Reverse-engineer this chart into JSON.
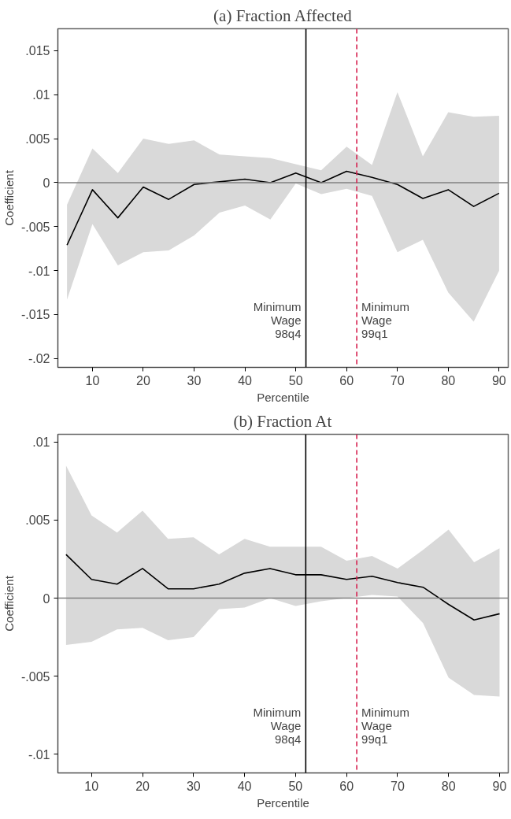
{
  "chart_data": [
    {
      "type": "line",
      "title": "(a) Fraction Affected",
      "xlabel": "Percentile",
      "ylabel": "Coefficient",
      "x": [
        5,
        10,
        15,
        20,
        25,
        30,
        35,
        40,
        45,
        50,
        55,
        60,
        65,
        70,
        75,
        80,
        85,
        90
      ],
      "series": [
        {
          "color": "#000000",
          "values": [
            -0.0071,
            -0.0008,
            -0.004,
            -0.0005,
            -0.0019,
            -0.0002,
            0.0001,
            0.0004,
            0.0,
            0.0011,
            0.0,
            0.0013,
            0.0006,
            -0.0002,
            -0.0018,
            -0.0008,
            -0.0027,
            -0.0012
          ],
          "upper": [
            -0.0025,
            0.0039,
            0.0011,
            0.005,
            0.0044,
            0.0048,
            0.0032,
            0.003,
            0.0028,
            0.0021,
            0.0014,
            0.0041,
            0.002,
            0.0103,
            0.003,
            0.008,
            0.0075,
            0.0076
          ],
          "lower": [
            -0.0133,
            -0.0047,
            -0.0094,
            -0.0079,
            -0.0077,
            -0.006,
            -0.0034,
            -0.0026,
            -0.0042,
            -0.0001,
            -0.0013,
            -0.0007,
            -0.0015,
            -0.0079,
            -0.0065,
            -0.0125,
            -0.0158,
            -0.01
          ]
        }
      ],
      "xlim": [
        3.2,
        91.8
      ],
      "ylim": [
        -0.021,
        0.0175
      ],
      "xticks": [
        10,
        20,
        30,
        40,
        50,
        60,
        70,
        80,
        90
      ],
      "yticks": [
        {
          "value": 0.015,
          "label": ".015"
        },
        {
          "value": 0.01,
          "label": ".01"
        },
        {
          "value": 0.005,
          "label": ".005"
        },
        0,
        {
          "value": -0.005,
          "label": "-.005"
        },
        {
          "value": -0.01,
          "label": "-.01"
        },
        {
          "value": -0.015,
          "label": "-.015"
        },
        {
          "value": -0.02,
          "label": "-.02"
        }
      ],
      "ref_lines": [
        {
          "axis": "y",
          "value": 0,
          "color": "#808080",
          "line_style": "solid"
        },
        {
          "axis": "x",
          "value": 52,
          "label": "Minimum\nWage\n98q4",
          "color": "#000000",
          "line_style": "solid"
        },
        {
          "axis": "x",
          "value": 62,
          "label": "Minimum\nWage\n99q1",
          "color": "#d6204f",
          "line_style": "dashed"
        }
      ],
      "line_style": "solid"
    },
    {
      "type": "line",
      "title": "(b) Fraction At",
      "xlabel": "Percentile",
      "ylabel": "Coefficient",
      "x": [
        5,
        10,
        15,
        20,
        25,
        30,
        35,
        40,
        45,
        50,
        55,
        60,
        65,
        70,
        75,
        80,
        85,
        90
      ],
      "series": [
        {
          "color": "#000000",
          "values": [
            0.0028,
            0.0012,
            0.0009,
            0.0019,
            0.0006,
            0.0006,
            0.0009,
            0.0016,
            0.0019,
            0.0015,
            0.0015,
            0.0012,
            0.0014,
            0.001,
            0.0007,
            -0.0004,
            -0.0014,
            -0.001
          ],
          "upper": [
            0.0085,
            0.0053,
            0.0042,
            0.0056,
            0.0038,
            0.0039,
            0.0028,
            0.0038,
            0.0033,
            0.0033,
            0.0033,
            0.0024,
            0.0027,
            0.0019,
            0.0031,
            0.0044,
            0.0023,
            0.0032
          ],
          "lower": [
            -0.003,
            -0.0028,
            -0.002,
            -0.0019,
            -0.0027,
            -0.0025,
            -0.0007,
            -0.0006,
            0.0,
            -0.0005,
            -0.0002,
            0.0,
            0.0002,
            0.0001,
            -0.0016,
            -0.0051,
            -0.0062,
            -0.0063
          ]
        }
      ],
      "xlim": [
        3.4,
        91.7
      ],
      "ylim": [
        -0.0112,
        0.0105
      ],
      "xticks": [
        10,
        20,
        30,
        40,
        50,
        60,
        70,
        80,
        90
      ],
      "yticks": [
        {
          "value": 0.01,
          "label": ".01"
        },
        {
          "value": 0.005,
          "label": ".005"
        },
        0,
        {
          "value": -0.005,
          "label": "-.005"
        },
        {
          "value": -0.01,
          "label": "-.01"
        }
      ],
      "ref_lines": [
        {
          "axis": "y",
          "value": 0,
          "color": "#808080",
          "line_style": "solid"
        },
        {
          "axis": "x",
          "value": 52,
          "label": "Minimum\nWage\n98q4",
          "color": "#000000",
          "line_style": "solid"
        },
        {
          "axis": "x",
          "value": 62,
          "label": "Minimum\nWage\n99q1",
          "color": "#d6204f",
          "line_style": "dashed"
        }
      ],
      "line_style": "solid"
    }
  ]
}
